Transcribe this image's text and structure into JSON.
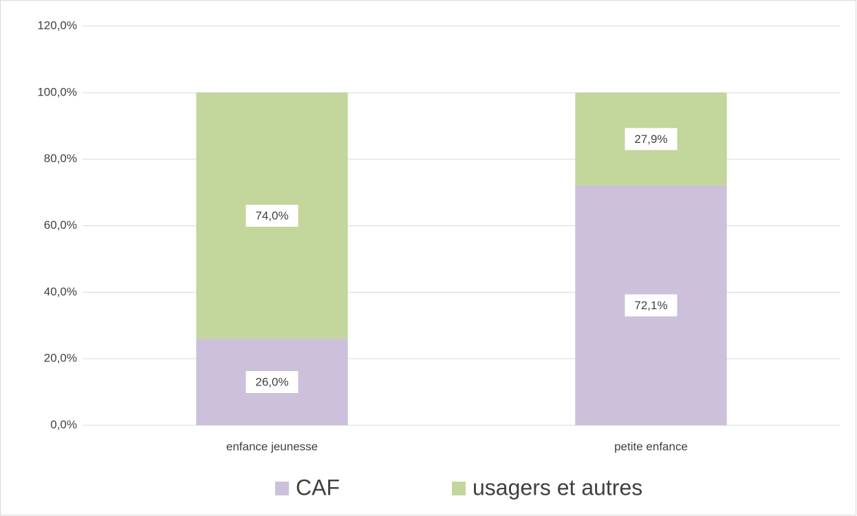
{
  "chart_data": {
    "type": "stacked_bar",
    "categories": [
      "enfance jeunesse",
      "petite enfance"
    ],
    "series": [
      {
        "name": "CAF",
        "color": "#ccc0da",
        "values": [
          26.0,
          72.1
        ],
        "value_labels": [
          "26,0%",
          "72,1%"
        ]
      },
      {
        "name": "usagers et autres",
        "color": "#c3d69b",
        "values": [
          74.0,
          27.9
        ],
        "value_labels": [
          "74,0%",
          "27,9%"
        ]
      }
    ],
    "ylim": [
      0,
      120
    ],
    "yticks": [
      {
        "value": 0,
        "label": "0,0%"
      },
      {
        "value": 20,
        "label": "20,0%"
      },
      {
        "value": 40,
        "label": "40,0%"
      },
      {
        "value": 60,
        "label": "60,0%"
      },
      {
        "value": 80,
        "label": "80,0%"
      },
      {
        "value": 100,
        "label": "100,0%"
      },
      {
        "value": 120,
        "label": "120,0%"
      }
    ],
    "grid": true,
    "legend": "bottom"
  }
}
